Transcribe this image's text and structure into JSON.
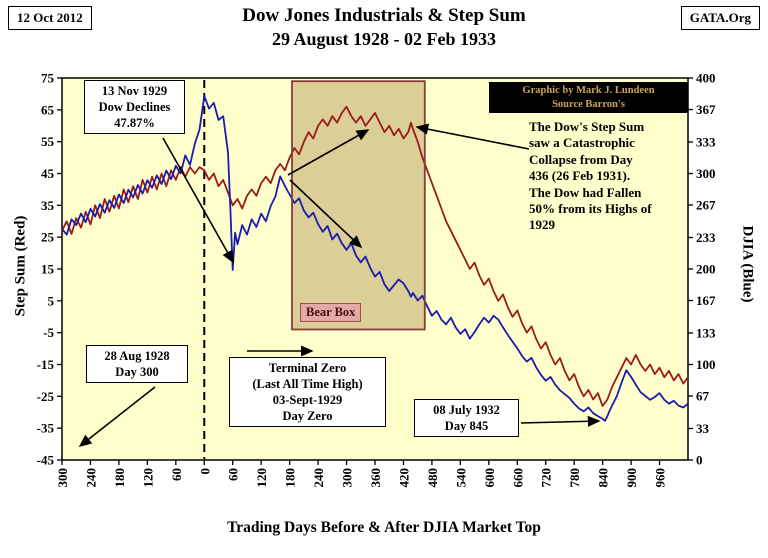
{
  "header": {
    "date": "12 Oct 2012",
    "source": "GATA.Org",
    "title_line1": "Dow Jones Industrials & Step Sum",
    "title_line2": "29 August 1928 - 02 Feb 1933"
  },
  "axes": {
    "left_label": "Step Sum (Red)",
    "right_label": "DJIA (Blue)",
    "x_label": "Trading Days Before & After DJIA Market Top"
  },
  "annotations": {
    "nov1929": {
      "lines": [
        "13 Nov 1929",
        "Dow Declines",
        "47.87%"
      ]
    },
    "credit": {
      "lines": [
        "Graphic by Mark J. Lundeen",
        "Source Barron's"
      ]
    },
    "collapse_note": {
      "lines": [
        "The Dow's Step Sum",
        "saw a Catastrophic",
        "Collapse from Day",
        "436 (26 Feb 1931).",
        "The Dow had Fallen",
        "50% from its Highs of",
        "1929"
      ]
    },
    "bear_box_label": "Bear Box",
    "aug1928": {
      "lines": [
        "28 Aug 1928",
        "Day 300"
      ]
    },
    "terminal_zero": {
      "lines": [
        "Terminal Zero",
        "(Last All Time High)",
        "03-Sept-1929",
        "Day Zero"
      ]
    },
    "july1932": {
      "lines": [
        "08 July 1932",
        "Day 845"
      ]
    }
  },
  "chart_data": {
    "type": "line",
    "title": "Dow Jones Industrials & Step Sum 29 August 1928 - 02 Feb 1933",
    "background": "#FFFFCC",
    "grid": false,
    "legend": "none",
    "x_axis": {
      "label": "Trading Days Before & After DJIA Market Top",
      "range": [
        -300,
        1020
      ],
      "ticks": [
        -300,
        -240,
        -180,
        -120,
        -60,
        0,
        60,
        120,
        180,
        240,
        300,
        360,
        420,
        480,
        540,
        600,
        660,
        720,
        780,
        840,
        900,
        960
      ],
      "tick_labels": [
        "300",
        "240",
        "180",
        "120",
        "60",
        "0",
        "60",
        "120",
        "180",
        "240",
        "300",
        "360",
        "420",
        "480",
        "540",
        "600",
        "660",
        "720",
        "780",
        "840",
        "900",
        "960"
      ]
    },
    "left_axis": {
      "label": "Step Sum (Red)",
      "range": [
        -45,
        75
      ],
      "ticks": [
        75,
        65,
        55,
        45,
        35,
        25,
        15,
        5,
        -5,
        -15,
        -25,
        -35,
        -45
      ]
    },
    "right_axis": {
      "label": "DJIA (Blue)",
      "range": [
        0,
        400
      ],
      "ticks": [
        400,
        367,
        333,
        300,
        267,
        233,
        200,
        167,
        133,
        100,
        67,
        33,
        0
      ]
    },
    "day_zero_line": {
      "x": 0,
      "style": "dashed"
    },
    "bear_box": {
      "day_start": 185,
      "day_end": 465,
      "top": 74,
      "bottom": -4,
      "fill": "#DBCE97",
      "border": "#8B3A3A"
    },
    "series": [
      {
        "name": "Step Sum",
        "axis": "left",
        "color": "#9B1B1B",
        "points": [
          [
            -300,
            27
          ],
          [
            -290,
            30
          ],
          [
            -280,
            26
          ],
          [
            -270,
            31
          ],
          [
            -260,
            28
          ],
          [
            -250,
            33
          ],
          [
            -240,
            29
          ],
          [
            -230,
            35
          ],
          [
            -220,
            31
          ],
          [
            -210,
            37
          ],
          [
            -200,
            33
          ],
          [
            -190,
            38
          ],
          [
            -180,
            34
          ],
          [
            -170,
            40
          ],
          [
            -160,
            36
          ],
          [
            -150,
            41
          ],
          [
            -140,
            37
          ],
          [
            -130,
            43
          ],
          [
            -120,
            39
          ],
          [
            -110,
            44
          ],
          [
            -100,
            40
          ],
          [
            -90,
            45
          ],
          [
            -80,
            41
          ],
          [
            -70,
            46
          ],
          [
            -60,
            43
          ],
          [
            -50,
            47
          ],
          [
            -40,
            44
          ],
          [
            -30,
            47
          ],
          [
            -20,
            45
          ],
          [
            -10,
            47
          ],
          [
            0,
            46
          ],
          [
            10,
            43
          ],
          [
            20,
            45
          ],
          [
            30,
            41
          ],
          [
            40,
            43
          ],
          [
            50,
            39
          ],
          [
            60,
            35
          ],
          [
            70,
            37
          ],
          [
            80,
            34
          ],
          [
            90,
            38
          ],
          [
            100,
            40
          ],
          [
            110,
            38
          ],
          [
            120,
            42
          ],
          [
            130,
            44
          ],
          [
            140,
            42
          ],
          [
            150,
            46
          ],
          [
            160,
            48
          ],
          [
            170,
            46
          ],
          [
            180,
            50
          ],
          [
            190,
            53
          ],
          [
            200,
            51
          ],
          [
            210,
            55
          ],
          [
            220,
            58
          ],
          [
            230,
            56
          ],
          [
            240,
            60
          ],
          [
            250,
            62
          ],
          [
            260,
            60
          ],
          [
            270,
            63
          ],
          [
            280,
            61
          ],
          [
            290,
            64
          ],
          [
            300,
            66
          ],
          [
            310,
            63
          ],
          [
            320,
            61
          ],
          [
            330,
            63
          ],
          [
            340,
            60
          ],
          [
            350,
            62
          ],
          [
            360,
            64
          ],
          [
            370,
            61
          ],
          [
            380,
            58
          ],
          [
            390,
            60
          ],
          [
            400,
            57
          ],
          [
            410,
            59
          ],
          [
            420,
            56
          ],
          [
            430,
            58
          ],
          [
            436,
            61
          ],
          [
            440,
            59
          ],
          [
            450,
            55
          ],
          [
            460,
            50
          ],
          [
            470,
            46
          ],
          [
            480,
            42
          ],
          [
            490,
            38
          ],
          [
            500,
            34
          ],
          [
            510,
            30
          ],
          [
            520,
            27
          ],
          [
            530,
            24
          ],
          [
            540,
            21
          ],
          [
            550,
            18
          ],
          [
            560,
            15
          ],
          [
            570,
            17
          ],
          [
            580,
            13
          ],
          [
            590,
            10
          ],
          [
            600,
            12
          ],
          [
            610,
            8
          ],
          [
            620,
            5
          ],
          [
            630,
            7
          ],
          [
            640,
            3
          ],
          [
            650,
            0
          ],
          [
            660,
            2
          ],
          [
            670,
            -2
          ],
          [
            680,
            -5
          ],
          [
            690,
            -3
          ],
          [
            700,
            -7
          ],
          [
            710,
            -10
          ],
          [
            720,
            -8
          ],
          [
            730,
            -12
          ],
          [
            740,
            -15
          ],
          [
            750,
            -13
          ],
          [
            760,
            -17
          ],
          [
            770,
            -20
          ],
          [
            780,
            -18
          ],
          [
            790,
            -22
          ],
          [
            800,
            -25
          ],
          [
            810,
            -23
          ],
          [
            820,
            -26
          ],
          [
            830,
            -24
          ],
          [
            840,
            -28
          ],
          [
            850,
            -26
          ],
          [
            860,
            -22
          ],
          [
            870,
            -19
          ],
          [
            880,
            -16
          ],
          [
            890,
            -13
          ],
          [
            900,
            -15
          ],
          [
            910,
            -12
          ],
          [
            920,
            -15
          ],
          [
            930,
            -17
          ],
          [
            940,
            -15
          ],
          [
            950,
            -18
          ],
          [
            960,
            -16
          ],
          [
            970,
            -19
          ],
          [
            980,
            -17
          ],
          [
            990,
            -20
          ],
          [
            1000,
            -18
          ],
          [
            1010,
            -21
          ],
          [
            1020,
            -19
          ]
        ]
      },
      {
        "name": "DJIA",
        "axis": "right",
        "color": "#1B1BB0",
        "points": [
          [
            -300,
            242
          ],
          [
            -290,
            236
          ],
          [
            -280,
            252
          ],
          [
            -270,
            246
          ],
          [
            -260,
            258
          ],
          [
            -250,
            249
          ],
          [
            -240,
            263
          ],
          [
            -230,
            255
          ],
          [
            -220,
            268
          ],
          [
            -210,
            259
          ],
          [
            -200,
            272
          ],
          [
            -190,
            264
          ],
          [
            -180,
            278
          ],
          [
            -170,
            269
          ],
          [
            -160,
            283
          ],
          [
            -150,
            275
          ],
          [
            -140,
            288
          ],
          [
            -130,
            279
          ],
          [
            -120,
            293
          ],
          [
            -110,
            285
          ],
          [
            -100,
            298
          ],
          [
            -90,
            289
          ],
          [
            -80,
            303
          ],
          [
            -70,
            294
          ],
          [
            -60,
            308
          ],
          [
            -50,
            300
          ],
          [
            -40,
            319
          ],
          [
            -30,
            309
          ],
          [
            -20,
            331
          ],
          [
            -10,
            346
          ],
          [
            0,
            381
          ],
          [
            10,
            368
          ],
          [
            20,
            374
          ],
          [
            30,
            356
          ],
          [
            40,
            360
          ],
          [
            50,
            322
          ],
          [
            55,
            262
          ],
          [
            60,
            199
          ],
          [
            65,
            238
          ],
          [
            70,
            226
          ],
          [
            80,
            246
          ],
          [
            90,
            236
          ],
          [
            100,
            252
          ],
          [
            110,
            244
          ],
          [
            120,
            258
          ],
          [
            130,
            250
          ],
          [
            140,
            266
          ],
          [
            150,
            276
          ],
          [
            160,
            297
          ],
          [
            170,
            287
          ],
          [
            180,
            278
          ],
          [
            190,
            269
          ],
          [
            200,
            274
          ],
          [
            210,
            261
          ],
          [
            220,
            254
          ],
          [
            230,
            259
          ],
          [
            240,
            247
          ],
          [
            250,
            239
          ],
          [
            260,
            245
          ],
          [
            270,
            231
          ],
          [
            280,
            237
          ],
          [
            290,
            227
          ],
          [
            300,
            220
          ],
          [
            310,
            227
          ],
          [
            320,
            214
          ],
          [
            330,
            207
          ],
          [
            340,
            213
          ],
          [
            350,
            201
          ],
          [
            360,
            192
          ],
          [
            370,
            197
          ],
          [
            380,
            184
          ],
          [
            390,
            177
          ],
          [
            400,
            183
          ],
          [
            410,
            189
          ],
          [
            420,
            185
          ],
          [
            430,
            177
          ],
          [
            436,
            171
          ],
          [
            440,
            175
          ],
          [
            450,
            167
          ],
          [
            460,
            172
          ],
          [
            470,
            161
          ],
          [
            480,
            151
          ],
          [
            490,
            156
          ],
          [
            500,
            147
          ],
          [
            510,
            142
          ],
          [
            520,
            149
          ],
          [
            530,
            139
          ],
          [
            540,
            132
          ],
          [
            550,
            137
          ],
          [
            560,
            127
          ],
          [
            570,
            134
          ],
          [
            580,
            142
          ],
          [
            590,
            149
          ],
          [
            600,
            144
          ],
          [
            610,
            151
          ],
          [
            620,
            147
          ],
          [
            630,
            139
          ],
          [
            640,
            131
          ],
          [
            650,
            124
          ],
          [
            660,
            117
          ],
          [
            670,
            109
          ],
          [
            680,
            103
          ],
          [
            690,
            107
          ],
          [
            700,
            97
          ],
          [
            710,
            89
          ],
          [
            720,
            83
          ],
          [
            730,
            87
          ],
          [
            740,
            79
          ],
          [
            750,
            73
          ],
          [
            760,
            69
          ],
          [
            770,
            65
          ],
          [
            780,
            59
          ],
          [
            790,
            54
          ],
          [
            800,
            51
          ],
          [
            810,
            55
          ],
          [
            820,
            49
          ],
          [
            830,
            46
          ],
          [
            840,
            43
          ],
          [
            845,
            41
          ],
          [
            850,
            46
          ],
          [
            855,
            52
          ],
          [
            860,
            57
          ],
          [
            870,
            67
          ],
          [
            880,
            81
          ],
          [
            890,
            94
          ],
          [
            900,
            87
          ],
          [
            910,
            79
          ],
          [
            920,
            71
          ],
          [
            930,
            67
          ],
          [
            940,
            63
          ],
          [
            950,
            66
          ],
          [
            960,
            70
          ],
          [
            970,
            63
          ],
          [
            980,
            59
          ],
          [
            990,
            62
          ],
          [
            1000,
            57
          ],
          [
            1010,
            55
          ],
          [
            1020,
            59
          ]
        ]
      }
    ]
  }
}
